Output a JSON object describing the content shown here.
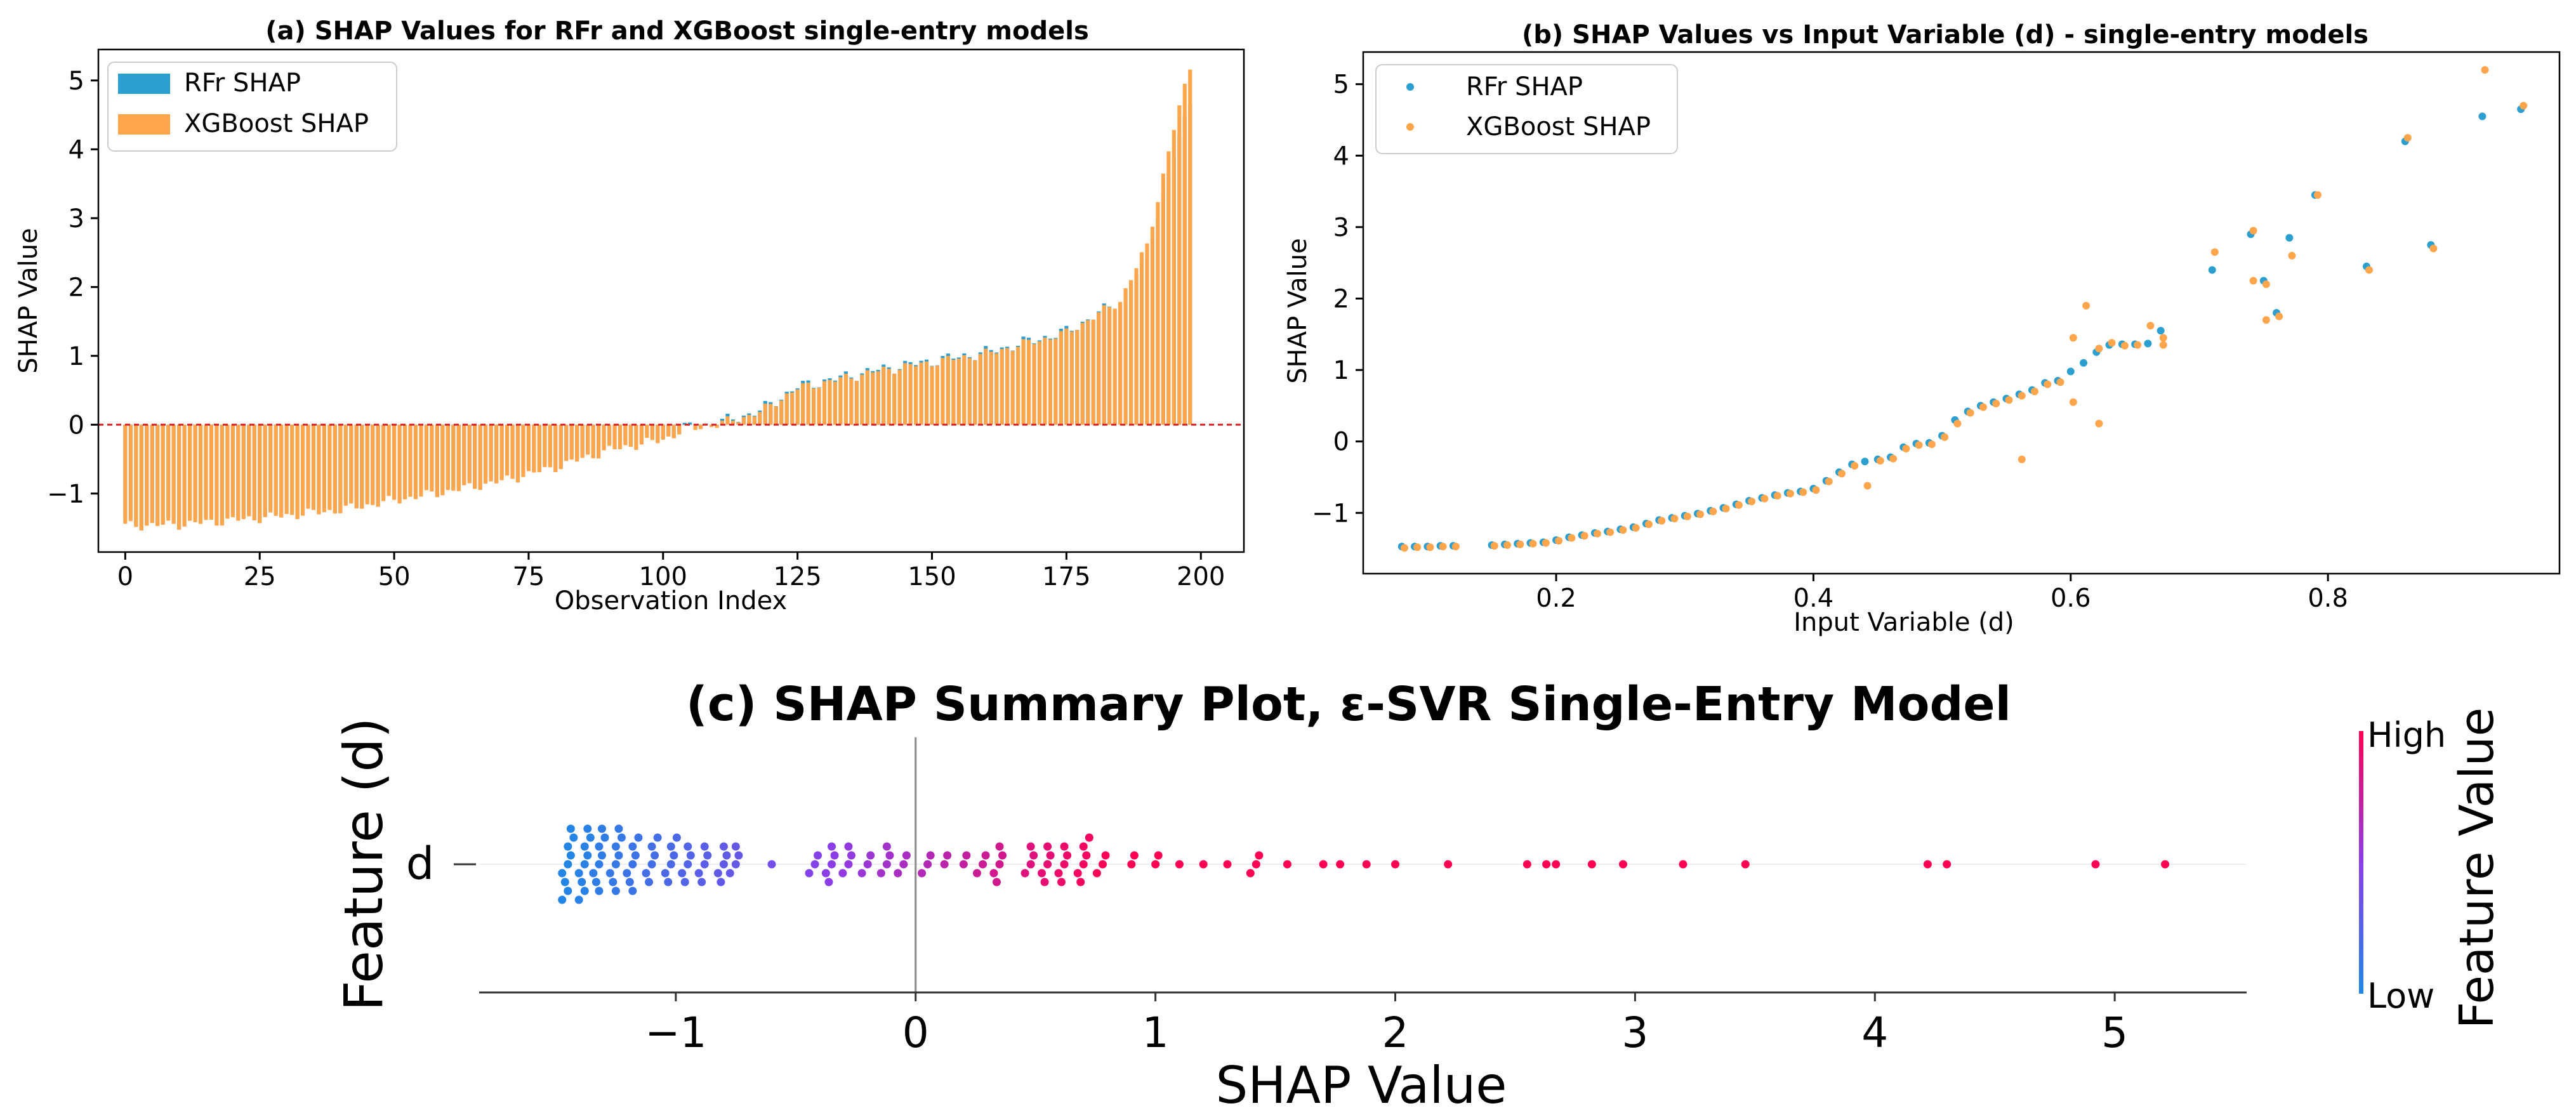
{
  "chart_data": [
    {
      "type": "bar",
      "title": "(a) SHAP Values for RFr and XGBoost single-entry models",
      "xlabel": "Observation Index",
      "ylabel": "SHAP Value",
      "xlim": [
        -5,
        208
      ],
      "ylim": [
        -1.85,
        5.45
      ],
      "xticks": [
        0,
        25,
        50,
        75,
        100,
        125,
        150,
        175,
        200
      ],
      "yticks": [
        -1,
        0,
        1,
        2,
        3,
        4,
        5
      ],
      "legend_position": "top-left",
      "reference_line": {
        "y": 0,
        "style": "dashed",
        "color": "#e02020"
      },
      "n_observations": 199,
      "series": [
        {
          "name": "RFr SHAP",
          "color": "#2a9fd0"
        },
        {
          "name": "XGBoost SHAP",
          "color": "#ffa64d"
        }
      ],
      "anchors": {
        "index": [
          0,
          10,
          20,
          30,
          40,
          50,
          60,
          70,
          80,
          90,
          100,
          104,
          110,
          118,
          125,
          140,
          160,
          175,
          185,
          190,
          195,
          198
        ],
        "rfr": [
          -1.45,
          -1.43,
          -1.37,
          -1.3,
          -1.22,
          -1.08,
          -0.95,
          -0.8,
          -0.6,
          -0.35,
          -0.2,
          -0.05,
          0.02,
          0.2,
          0.55,
          0.8,
          1.05,
          1.35,
          1.8,
          2.5,
          3.9,
          4.7
        ],
        "xgboost": [
          -1.47,
          -1.45,
          -1.39,
          -1.32,
          -1.24,
          -1.1,
          -0.97,
          -0.82,
          -0.62,
          -0.37,
          -0.22,
          -0.07,
          0.0,
          0.18,
          0.53,
          0.78,
          1.03,
          1.33,
          1.8,
          2.6,
          4.3,
          5.2
        ]
      }
    },
    {
      "type": "scatter",
      "title": "(b) SHAP Values vs Input Variable (d) - single-entry models",
      "xlabel": "Input Variable (d)",
      "ylabel": "SHAP Value",
      "xlim": [
        0.05,
        0.98
      ],
      "ylim": [
        -1.85,
        5.45
      ],
      "xticks": [
        0.2,
        0.4,
        0.6,
        0.8
      ],
      "yticks": [
        -1,
        0,
        1,
        2,
        3,
        4,
        5
      ],
      "legend_position": "top-left",
      "series": [
        {
          "name": "RFr SHAP",
          "color": "#2a9fd0",
          "x": [
            0.08,
            0.09,
            0.1,
            0.11,
            0.12,
            0.15,
            0.16,
            0.17,
            0.18,
            0.19,
            0.2,
            0.21,
            0.22,
            0.23,
            0.24,
            0.25,
            0.26,
            0.27,
            0.28,
            0.29,
            0.3,
            0.31,
            0.32,
            0.33,
            0.34,
            0.35,
            0.36,
            0.37,
            0.38,
            0.39,
            0.4,
            0.41,
            0.42,
            0.43,
            0.44,
            0.45,
            0.46,
            0.47,
            0.48,
            0.49,
            0.5,
            0.51,
            0.52,
            0.53,
            0.54,
            0.55,
            0.56,
            0.57,
            0.58,
            0.59,
            0.6,
            0.61,
            0.62,
            0.63,
            0.64,
            0.65,
            0.66,
            0.67,
            0.71,
            0.74,
            0.75,
            0.76,
            0.77,
            0.79,
            0.83,
            0.86,
            0.88,
            0.92,
            0.95
          ],
          "y": [
            -1.47,
            -1.47,
            -1.47,
            -1.46,
            -1.46,
            -1.45,
            -1.44,
            -1.43,
            -1.42,
            -1.41,
            -1.38,
            -1.34,
            -1.31,
            -1.28,
            -1.26,
            -1.23,
            -1.2,
            -1.15,
            -1.1,
            -1.07,
            -1.04,
            -1.01,
            -0.97,
            -0.93,
            -0.88,
            -0.83,
            -0.79,
            -0.75,
            -0.72,
            -0.7,
            -0.66,
            -0.55,
            -0.43,
            -0.32,
            -0.28,
            -0.25,
            -0.22,
            -0.08,
            -0.03,
            -0.02,
            0.08,
            0.3,
            0.42,
            0.5,
            0.55,
            0.6,
            0.66,
            0.72,
            0.82,
            0.85,
            0.98,
            1.1,
            1.25,
            1.35,
            1.36,
            1.36,
            1.37,
            1.55,
            2.4,
            2.9,
            2.25,
            1.8,
            2.85,
            3.45,
            2.45,
            4.2,
            2.75,
            4.55,
            4.65
          ]
        },
        {
          "name": "XGBoost SHAP",
          "color": "#ffa64d",
          "x": [
            0.08,
            0.09,
            0.1,
            0.11,
            0.12,
            0.15,
            0.16,
            0.17,
            0.18,
            0.19,
            0.2,
            0.21,
            0.22,
            0.23,
            0.24,
            0.25,
            0.26,
            0.27,
            0.28,
            0.29,
            0.3,
            0.31,
            0.32,
            0.33,
            0.34,
            0.35,
            0.36,
            0.37,
            0.38,
            0.39,
            0.4,
            0.41,
            0.42,
            0.43,
            0.44,
            0.45,
            0.46,
            0.47,
            0.48,
            0.49,
            0.5,
            0.51,
            0.52,
            0.53,
            0.54,
            0.55,
            0.56,
            0.57,
            0.58,
            0.59,
            0.6,
            0.61,
            0.62,
            0.63,
            0.64,
            0.65,
            0.66,
            0.67,
            0.71,
            0.74,
            0.75,
            0.76,
            0.77,
            0.79,
            0.83,
            0.86,
            0.88,
            0.92,
            0.95,
            0.56,
            0.6,
            0.62,
            0.75,
            0.74,
            0.67
          ],
          "y": [
            -1.49,
            -1.48,
            -1.48,
            -1.47,
            -1.47,
            -1.46,
            -1.45,
            -1.44,
            -1.43,
            -1.42,
            -1.39,
            -1.35,
            -1.32,
            -1.29,
            -1.27,
            -1.24,
            -1.21,
            -1.16,
            -1.11,
            -1.08,
            -1.05,
            -1.02,
            -0.98,
            -0.94,
            -0.89,
            -0.84,
            -0.8,
            -0.76,
            -0.73,
            -0.71,
            -0.68,
            -0.56,
            -0.45,
            -0.34,
            -0.62,
            -0.27,
            -0.24,
            -0.1,
            -0.05,
            -0.04,
            0.06,
            0.25,
            0.4,
            0.48,
            0.53,
            0.58,
            0.64,
            0.7,
            0.8,
            0.83,
            1.45,
            1.9,
            1.3,
            1.38,
            1.34,
            1.35,
            1.62,
            1.45,
            2.65,
            2.95,
            2.2,
            1.75,
            2.6,
            3.45,
            2.4,
            4.25,
            2.7,
            5.2,
            4.7,
            -0.25,
            0.55,
            0.25,
            1.7,
            2.25,
            1.35
          ]
        }
      ]
    },
    {
      "type": "scatter",
      "title": "(c) SHAP Summary Plot, ε-SVR Single-Entry Model",
      "xlabel": "SHAP Value",
      "ylabel": "Feature (d)",
      "category": "d",
      "xlim": [
        -1.82,
        5.55
      ],
      "xticks": [
        -1,
        0,
        1,
        2,
        3,
        4,
        5
      ],
      "xtick_labels": [
        "−1",
        "0",
        "1",
        "2",
        "3",
        "4",
        "5"
      ],
      "reference_line": {
        "x": 0,
        "color": "#8a8a8a"
      },
      "colorbar": {
        "label": "Feature Value",
        "high": "High",
        "low": "Low",
        "low_color": "#1e88e5",
        "high_color": "#ff0052"
      },
      "cluster_centers": [
        -1.45,
        -1.38,
        -1.32,
        -1.25,
        -1.18,
        -1.1,
        -1.02,
        -0.95,
        -0.88,
        -0.8,
        -0.75,
        -0.6,
        -0.42,
        -0.35,
        -0.28,
        -0.2,
        -0.12,
        -0.05,
        0.05,
        0.12,
        0.2,
        0.28,
        0.35,
        0.48,
        0.55,
        0.62,
        0.7,
        0.78,
        0.9,
        1.0,
        1.1,
        1.2,
        1.3,
        1.42,
        1.55
      ],
      "cluster_sizes": [
        9,
        9,
        8,
        8,
        7,
        6,
        6,
        5,
        5,
        5,
        4,
        1,
        3,
        5,
        4,
        3,
        4,
        3,
        3,
        2,
        2,
        3,
        5,
        4,
        5,
        5,
        6,
        3,
        2,
        2,
        1,
        1,
        1,
        3,
        1
      ],
      "values_sparse": [
        1.7,
        1.77,
        1.88,
        2.0,
        2.22,
        2.55,
        2.63,
        2.67,
        2.82,
        2.95,
        3.2,
        3.46,
        4.22,
        4.3,
        4.92,
        5.21
      ]
    }
  ]
}
